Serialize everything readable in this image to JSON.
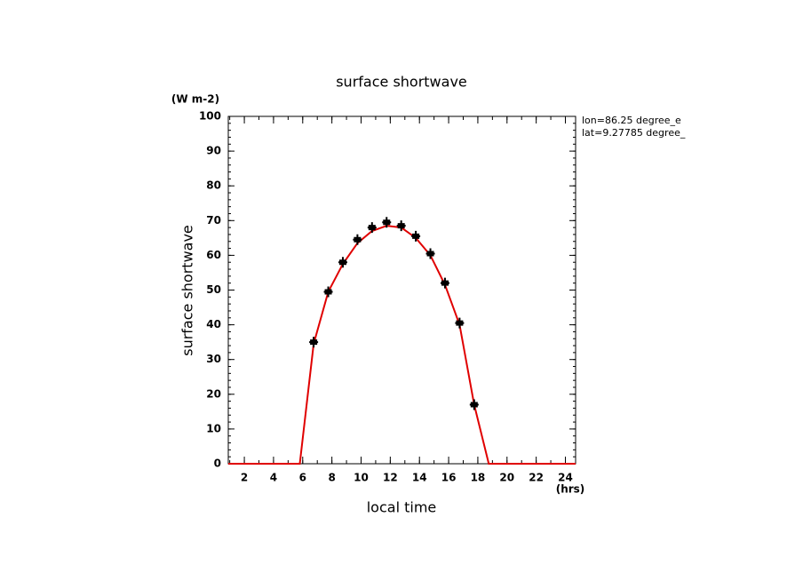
{
  "chart_data": {
    "type": "line",
    "title": "surface shortwave",
    "y_unit": "(W m-2)",
    "y_label": "surface shortwave",
    "x_label": "local time",
    "x_unit": "(hrs)",
    "annotations": [
      "lon=86.25 degree_e",
      "lat=9.27785 degree_"
    ],
    "xlim": [
      0.9,
      24.7
    ],
    "ylim": [
      0,
      100
    ],
    "xticks": [
      2,
      4,
      6,
      8,
      10,
      12,
      14,
      16,
      18,
      20,
      22,
      24
    ],
    "yticks": [
      0,
      10,
      20,
      30,
      40,
      50,
      60,
      70,
      80,
      90,
      100
    ],
    "series": [
      {
        "type": "line",
        "color": "#e00000",
        "x": [
          0.9,
          5.8,
          6.75,
          7.75,
          8.75,
          9.75,
          10.75,
          11.75,
          12.75,
          13.75,
          14.75,
          15.75,
          16.75,
          17.75,
          18.75,
          24.7
        ],
        "values": [
          0,
          0,
          34.5,
          49.5,
          57.5,
          63.5,
          67,
          68.5,
          68,
          65,
          60,
          51.5,
          40,
          17,
          0,
          0
        ]
      },
      {
        "type": "scatter",
        "color": "#000000",
        "x": [
          6.75,
          7.75,
          8.75,
          9.75,
          10.75,
          11.75,
          12.75,
          13.75,
          14.75,
          15.75,
          16.75,
          17.75
        ],
        "values": [
          35,
          49.5,
          58,
          64.5,
          68,
          69.5,
          68.5,
          65.5,
          60.5,
          52,
          40.5,
          17
        ]
      }
    ]
  }
}
